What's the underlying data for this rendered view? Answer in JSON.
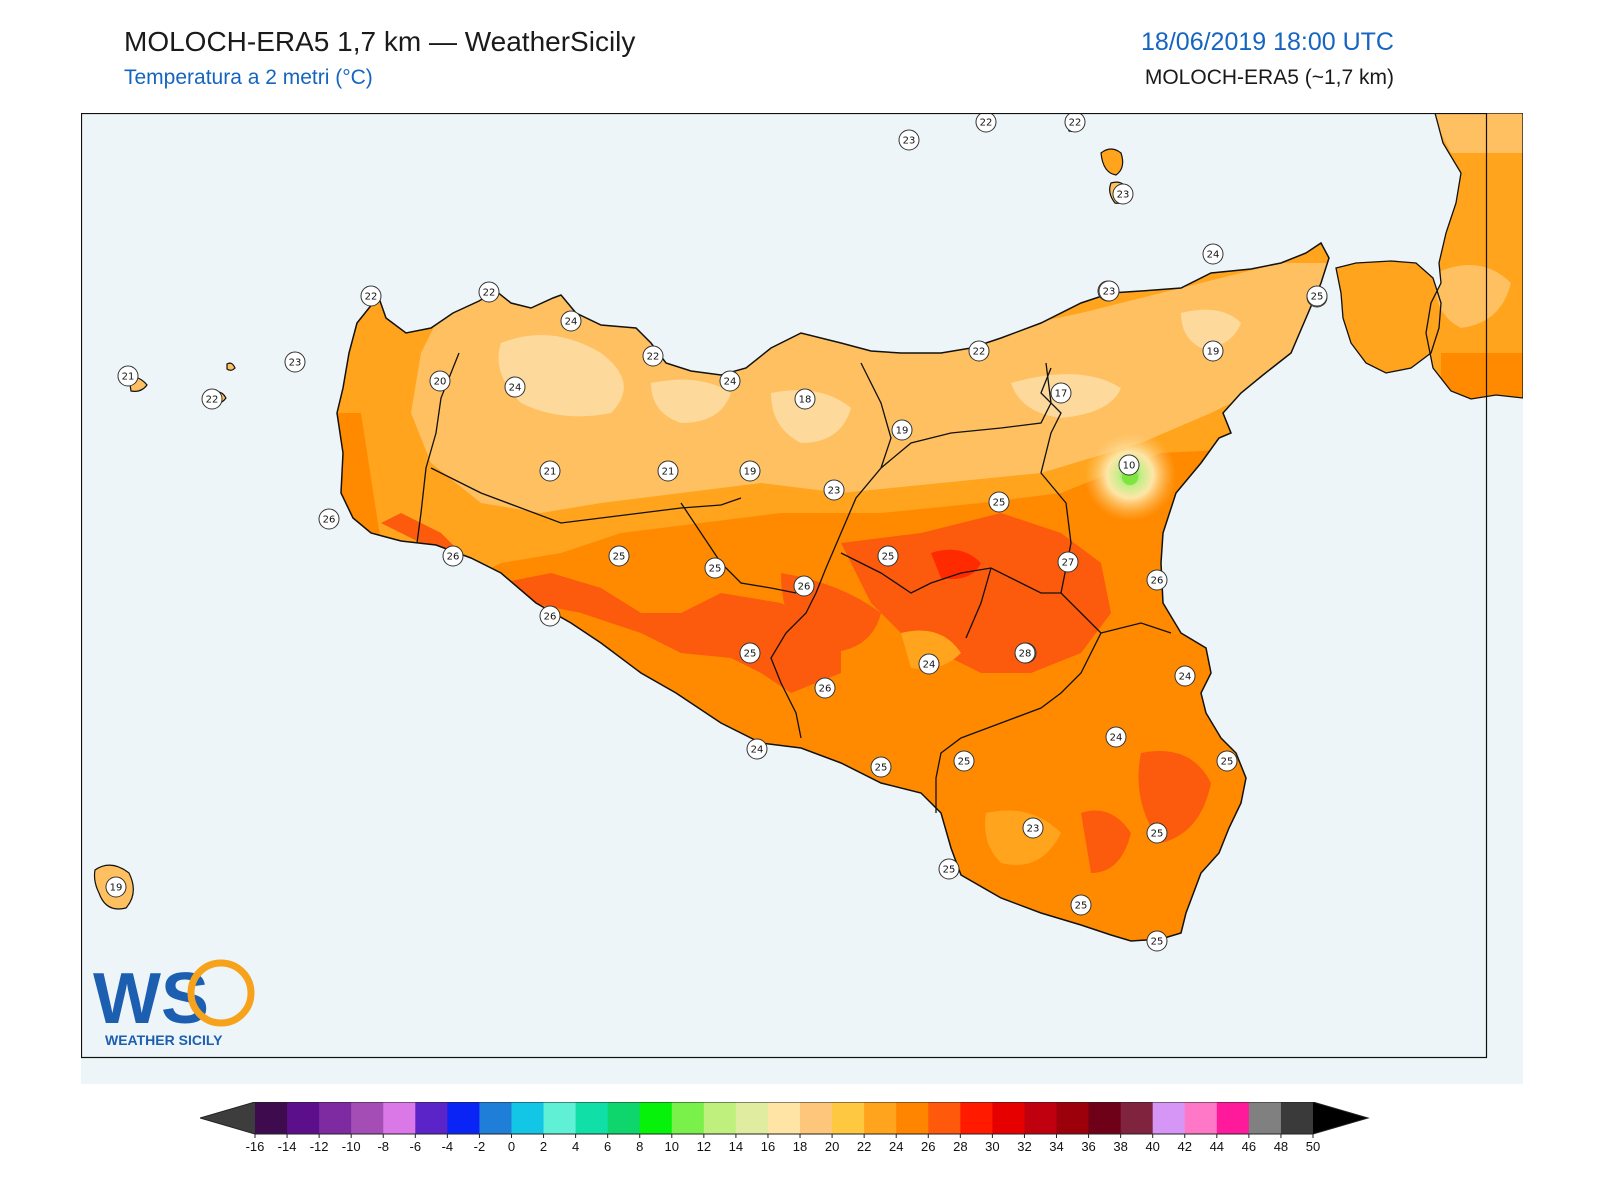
{
  "header": {
    "title": "MOLOCH-ERA5 1,7 km — WeatherSicily",
    "subtitle": "Temperatura a 2 metri (°C)",
    "datetime": "18/06/2019 18:00 UTC",
    "model": "MOLOCH-ERA5 (~1,7 km)"
  },
  "logo": {
    "mark": "WS",
    "name": "WEATHER SICILY"
  },
  "colors": {
    "sea": "#edf5f8",
    "t18": "#fdd99b",
    "t20": "#fec060",
    "t22": "#ffa41c",
    "t24": "#ff8a00",
    "t26": "#fc5a0c",
    "t28": "#ff2a00",
    "cold": "#7ee53c"
  },
  "legend": {
    "ticks": [
      "-16",
      "-14",
      "-12",
      "-10",
      "-8",
      "-6",
      "-4",
      "-2",
      "0",
      "2",
      "4",
      "6",
      "8",
      "10",
      "12",
      "14",
      "16",
      "18",
      "20",
      "22",
      "24",
      "26",
      "28",
      "30",
      "32",
      "34",
      "36",
      "38",
      "40",
      "42",
      "44",
      "46",
      "48",
      "50"
    ],
    "colors": [
      "#3d0b4e",
      "#5c0f8a",
      "#7e2aa0",
      "#a44eb5",
      "#d978e6",
      "#5b24c8",
      "#0a24f5",
      "#1e7ed8",
      "#13c6e6",
      "#5ff0d6",
      "#10e0a8",
      "#0fd66c",
      "#07f20a",
      "#7af04a",
      "#bff07e",
      "#e0eca0",
      "#ffe4a6",
      "#fdc67a",
      "#fec840",
      "#ffa41c",
      "#ff8400",
      "#ff5a0c",
      "#ff1a00",
      "#e60000",
      "#c0000e",
      "#9c000a",
      "#6e0018",
      "#80233e",
      "#d596f5",
      "#ff78c8",
      "#ff1a9c",
      "#808080",
      "#3a3a3a"
    ]
  },
  "stations": [
    {
      "v": "23"
    },
    {
      "v": "22"
    },
    {
      "v": "22"
    },
    {
      "v": "23"
    },
    {
      "v": "24"
    },
    {
      "v": "22"
    },
    {
      "v": "22"
    },
    {
      "v": "24"
    },
    {
      "v": "25"
    },
    {
      "v": "23"
    },
    {
      "v": "22"
    },
    {
      "v": "21"
    },
    {
      "v": "22"
    },
    {
      "v": "20"
    },
    {
      "v": "24"
    },
    {
      "v": "22"
    },
    {
      "v": "24"
    },
    {
      "v": "18"
    },
    {
      "v": "17"
    },
    {
      "v": "19"
    },
    {
      "v": "19"
    },
    {
      "v": "23"
    },
    {
      "v": "23"
    },
    {
      "v": "22"
    },
    {
      "v": "21"
    },
    {
      "v": "21"
    },
    {
      "v": "19"
    },
    {
      "v": "23"
    },
    {
      "v": "10"
    },
    {
      "v": "26"
    },
    {
      "v": "25"
    },
    {
      "v": "26"
    },
    {
      "v": "25"
    },
    {
      "v": "25"
    },
    {
      "v": "26"
    },
    {
      "v": "25"
    },
    {
      "v": "27"
    },
    {
      "v": "26"
    },
    {
      "v": "26"
    },
    {
      "v": "25"
    },
    {
      "v": "26"
    },
    {
      "v": "26"
    },
    {
      "v": "24"
    },
    {
      "v": "28"
    },
    {
      "v": "24"
    },
    {
      "v": "24"
    },
    {
      "v": "24"
    },
    {
      "v": "25"
    },
    {
      "v": "25"
    },
    {
      "v": "25"
    },
    {
      "v": "23"
    },
    {
      "v": "25"
    },
    {
      "v": "25"
    },
    {
      "v": "25"
    },
    {
      "v": "25"
    },
    {
      "v": "19"
    }
  ]
}
